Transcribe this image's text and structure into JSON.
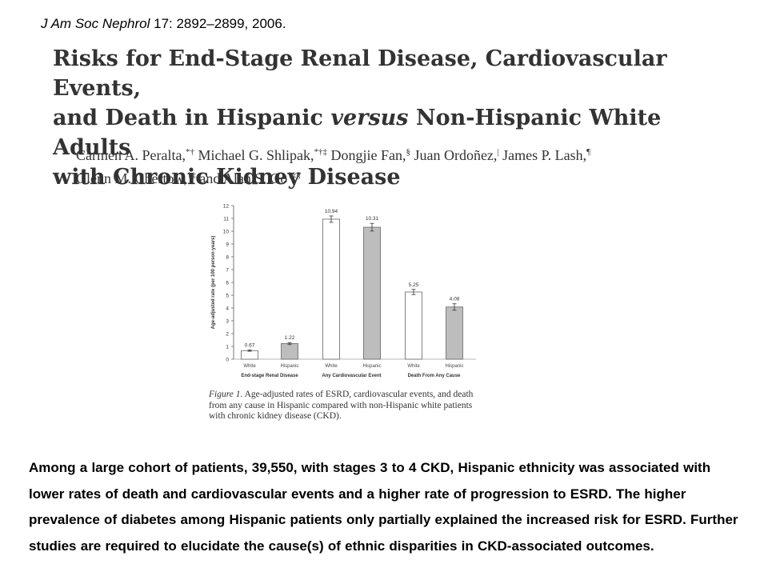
{
  "citation": {
    "journal": "J Am Soc Nephrol",
    "rest": "17: 2892–2899, 2006."
  },
  "paper": {
    "title_lines": [
      "Risks for End-Stage Renal Disease, Cardiovascular Events,",
      [
        "and Death in Hispanic ",
        "versus",
        " Non-Hispanic White Adults"
      ],
      "with Chronic Kidney Disease"
    ],
    "authors_line1": [
      [
        "Carmen A. Peralta,",
        "*†"
      ],
      [
        "Michael G. Shlipak,",
        "*†‡"
      ],
      [
        "Dongjie Fan,",
        "§"
      ],
      [
        "Juan Ordoñez,",
        "|"
      ],
      [
        "James P. Lash,",
        "¶"
      ]
    ],
    "authors_line2": [
      [
        "Glenn M. Chertow,",
        "†‡"
      ],
      [
        "and Alan S. Go",
        "†‡§"
      ]
    ]
  },
  "figure": {
    "caption_label": "Figure 1.",
    "caption_text": "Age-adjusted rates of ESRD, cardiovascular events, and death from any cause in Hispanic compared with non-Hispanic white patients with chronic kidney disease (CKD)."
  },
  "chart_data": {
    "type": "bar",
    "ylabel": "Age-adjusted rate (per 100 person-years)",
    "ylim": [
      0,
      12
    ],
    "yticks": [
      0,
      1,
      2,
      3,
      4,
      5,
      6,
      7,
      8,
      9,
      10,
      11,
      12
    ],
    "groups": [
      "End-stage Renal Disease",
      "Any Cardiovascular Event",
      "Death From Any Cause"
    ],
    "categories": [
      "White",
      "Hispanic",
      "White",
      "Hispanic",
      "White",
      "Hispanic"
    ],
    "values": [
      0.67,
      1.22,
      10.94,
      10.31,
      5.25,
      4.08
    ],
    "value_labels": [
      "0.67",
      "1.22",
      "10.94",
      "10.31",
      "5.25",
      "4.08"
    ],
    "error_bars": [
      0.05,
      0.08,
      0.25,
      0.3,
      0.2,
      0.25
    ],
    "colors": {
      "White": "#ffffff",
      "Hispanic": "#bdbdbd"
    },
    "grid": false
  },
  "summary": "Among a large cohort of patients, 39,550, with stages 3 to 4 CKD, Hispanic ethnicity was associated with lower rates of death and cardiovascular events and a higher rate of progression to ESRD. The higher prevalence of diabetes among Hispanic patients only partially explained the increased risk for ESRD. Further studies are required to elucidate the cause(s) of ethnic disparities in CKD-associated outcomes."
}
